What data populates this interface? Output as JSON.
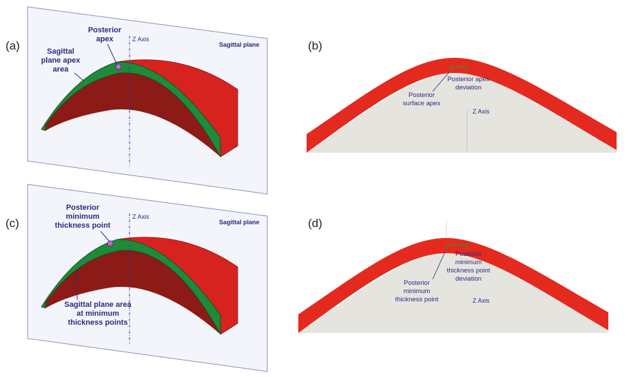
{
  "panels": [
    {
      "label": "(a)",
      "plane_label": "Sagittal plane",
      "axis_label": "Z Axis",
      "annotations": [
        [
          "Posterior",
          "apex"
        ],
        [
          "Sagittal",
          "plane apex",
          "area"
        ]
      ]
    },
    {
      "label": "(b)",
      "axis_label": "Z Axis",
      "annotations": [
        [
          "Posterior apex",
          "deviation"
        ],
        [
          "Posterior",
          "surface apex"
        ]
      ]
    },
    {
      "label": "(c)",
      "plane_label": "Sagittal plane",
      "axis_label": "Z Axis",
      "annotations": [
        [
          "Posterior",
          "minimum",
          "thickness point"
        ],
        [
          "Sagittal plane area",
          "at minimum",
          "thickness points"
        ]
      ]
    },
    {
      "label": "(d)",
      "axis_label": "Z Axis",
      "annotations": [
        [
          "Posterior",
          "minimum",
          "thickness point",
          "deviation"
        ],
        [
          "Posterior",
          "minimum",
          "thickness point"
        ]
      ]
    }
  ]
}
